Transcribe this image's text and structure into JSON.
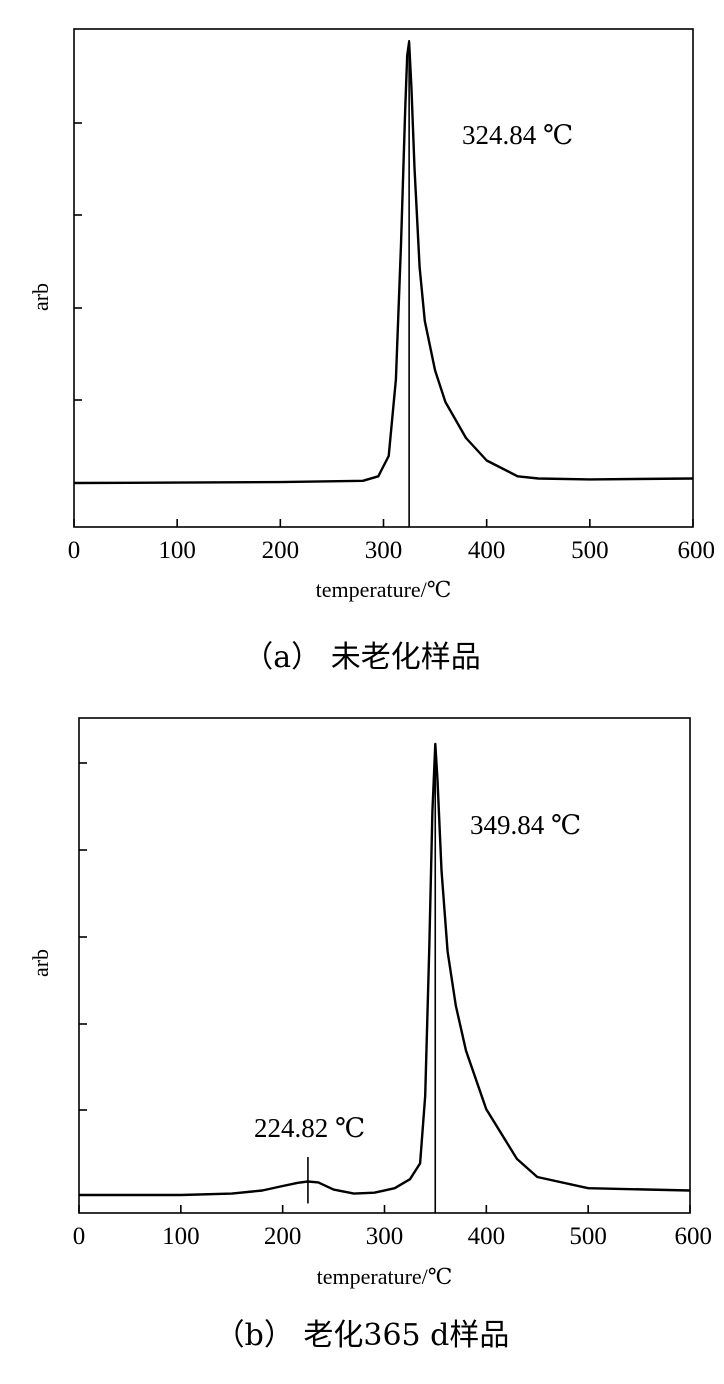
{
  "chart_data": [
    {
      "type": "line",
      "caption": "（a） 未老化样品",
      "xlabel": "temperature/℃",
      "ylabel": "arb",
      "xlim": [
        0,
        600
      ],
      "xticks": [
        "0",
        "100",
        "200",
        "300",
        "400",
        "500",
        "600"
      ],
      "ytick_count": 4,
      "grid": false,
      "series": [
        {
          "x": [
            0,
            100,
            200,
            280,
            295,
            305,
            312,
            317,
            321,
            323,
            324.84,
            327,
            330,
            335,
            340,
            350,
            360,
            380,
            400,
            430,
            450,
            500,
            600
          ],
          "y": [
            0.02,
            0.021,
            0.022,
            0.025,
            0.035,
            0.08,
            0.25,
            0.55,
            0.85,
            0.97,
            1.0,
            0.9,
            0.72,
            0.5,
            0.38,
            0.27,
            0.2,
            0.12,
            0.07,
            0.035,
            0.03,
            0.028,
            0.03
          ]
        }
      ],
      "annotations": [
        {
          "x": 324.84,
          "label": "324.84 ℃"
        }
      ]
    },
    {
      "type": "line",
      "caption": "（b） 老化365 d样品",
      "xlabel": "temperature/℃",
      "ylabel": "arb",
      "xlim": [
        0,
        600
      ],
      "xticks": [
        "0",
        "100",
        "200",
        "300",
        "400",
        "500",
        "600"
      ],
      "ytick_count": 5,
      "grid": false,
      "series": [
        {
          "x": [
            0,
            100,
            150,
            180,
            200,
            215,
            224.82,
            235,
            250,
            270,
            290,
            310,
            325,
            335,
            340,
            344,
            347,
            349.84,
            352,
            356,
            362,
            370,
            380,
            400,
            430,
            450,
            500,
            600
          ],
          "y": [
            0.0,
            0.0,
            0.003,
            0.01,
            0.02,
            0.027,
            0.03,
            0.028,
            0.012,
            0.003,
            0.005,
            0.015,
            0.035,
            0.07,
            0.22,
            0.55,
            0.85,
            1.0,
            0.92,
            0.72,
            0.54,
            0.42,
            0.32,
            0.19,
            0.08,
            0.04,
            0.015,
            0.01
          ]
        }
      ],
      "annotations": [
        {
          "x": 224.82,
          "label": "224.82 ℃"
        },
        {
          "x": 349.84,
          "label": "349.84 ℃"
        }
      ]
    }
  ]
}
